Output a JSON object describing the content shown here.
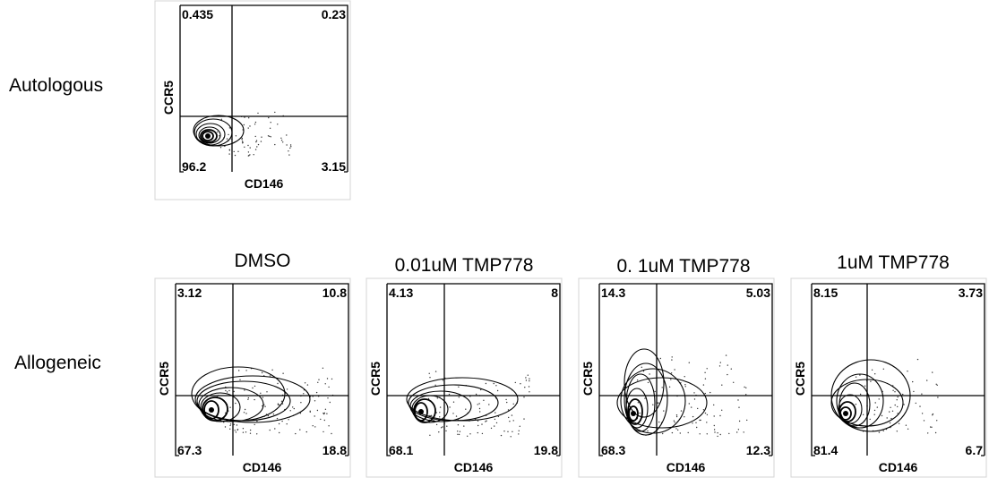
{
  "row_labels": {
    "autologous": "Autologous",
    "allogeneic": "Allogeneic"
  },
  "chart_data": [
    {
      "type": "contour",
      "row": "Autologous",
      "condition": "",
      "xlabel": "CD146",
      "ylabel": "CCR5",
      "quadrants": {
        "top_left": "0.435",
        "top_right": "0.23",
        "bottom_left": "96.2",
        "bottom_right": "3.15"
      }
    },
    {
      "type": "contour",
      "row": "Allogeneic",
      "condition": "DMSO",
      "xlabel": "CD146",
      "ylabel": "CCR5",
      "quadrants": {
        "top_left": "3.12",
        "top_right": "10.8",
        "bottom_left": "67.3",
        "bottom_right": "18.8"
      }
    },
    {
      "type": "contour",
      "row": "Allogeneic",
      "condition": "0.01uM TMP778",
      "xlabel": "CD146",
      "ylabel": "CCR5",
      "quadrants": {
        "top_left": "4.13",
        "top_right": "8",
        "bottom_left": "68.1",
        "bottom_right": "19.8"
      }
    },
    {
      "type": "contour",
      "row": "Allogeneic",
      "condition": "0. 1uM TMP778",
      "xlabel": "CD146",
      "ylabel": "CCR5",
      "quadrants": {
        "top_left": "14.3",
        "top_right": "5.03",
        "bottom_left": "68.3",
        "bottom_right": "12.3"
      }
    },
    {
      "type": "contour",
      "row": "Allogeneic",
      "condition": "1uM TMP778",
      "xlabel": "CD146",
      "ylabel": "CCR5",
      "quadrants": {
        "top_left": "8.15",
        "top_right": "3.73",
        "bottom_left": "81.4",
        "bottom_right": "6.7"
      }
    }
  ]
}
